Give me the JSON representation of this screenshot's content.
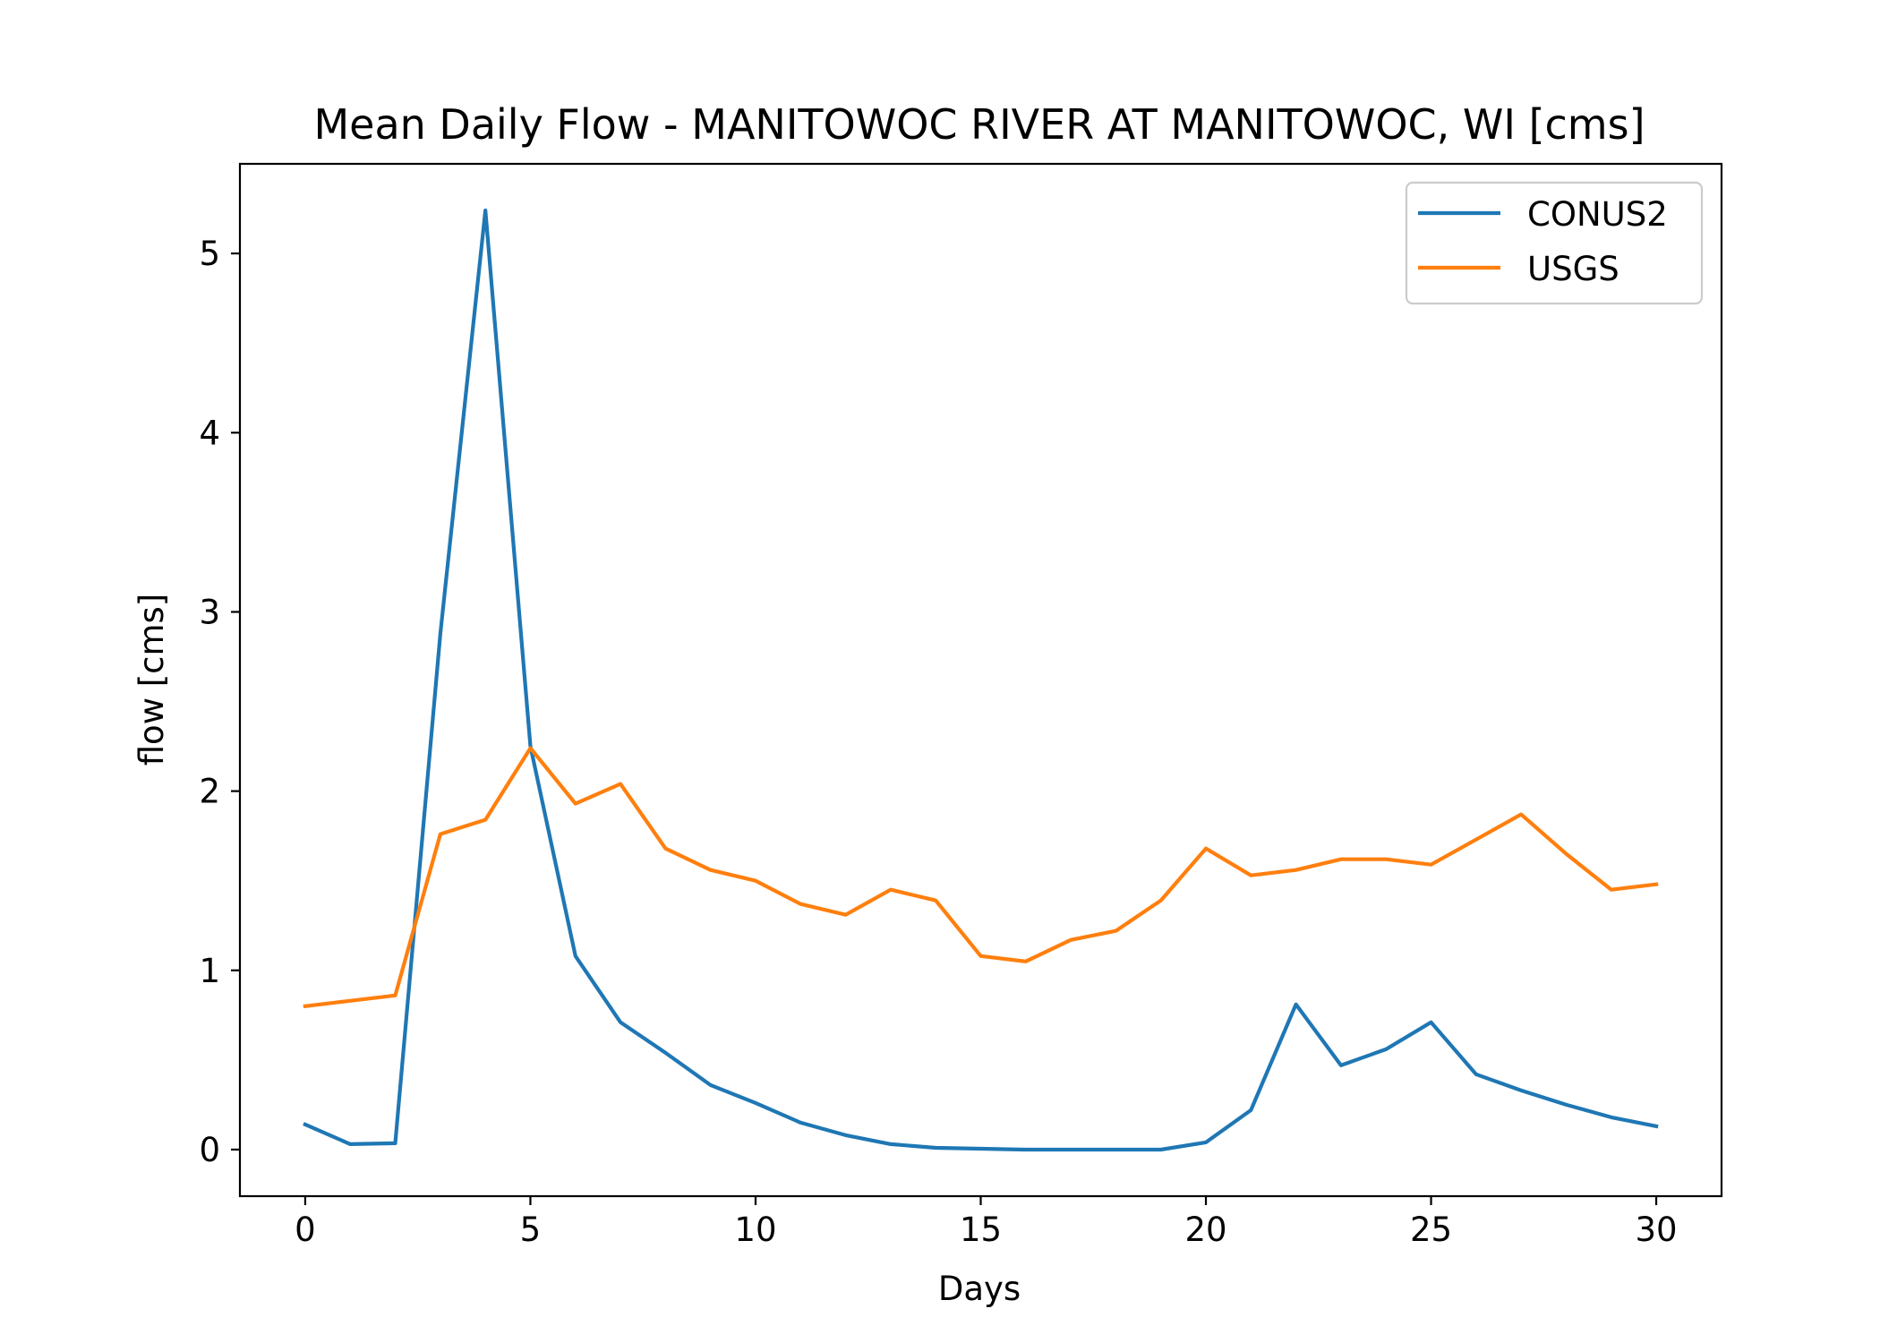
{
  "chart_data": {
    "type": "line",
    "title": "Mean Daily Flow - MANITOWOC RIVER AT MANITOWOC, WI [cms]",
    "xlabel": "Days",
    "ylabel": "flow [cms]",
    "xlim": [
      -1.45,
      31.45
    ],
    "ylim": [
      -0.26,
      5.5
    ],
    "xticks": [
      0,
      5,
      10,
      15,
      20,
      25,
      30
    ],
    "yticks": [
      0,
      1,
      2,
      3,
      4,
      5
    ],
    "grid": false,
    "legend_position": "top-right",
    "x": [
      0,
      1,
      2,
      3,
      4,
      5,
      6,
      7,
      8,
      9,
      10,
      11,
      12,
      13,
      14,
      15,
      16,
      17,
      18,
      19,
      20,
      21,
      22,
      23,
      24,
      25,
      26,
      27,
      28,
      29,
      30
    ],
    "series": [
      {
        "name": "CONUS2",
        "color": "#1f77b4",
        "values": [
          0.14,
          0.03,
          0.035,
          2.88,
          5.24,
          2.25,
          1.08,
          0.71,
          0.54,
          0.36,
          0.26,
          0.15,
          0.08,
          0.03,
          0.01,
          0.005,
          0.0,
          0.0,
          0.0,
          0.0,
          0.04,
          0.22,
          0.81,
          0.47,
          0.56,
          0.71,
          0.42,
          0.33,
          0.25,
          0.18,
          0.13
        ]
      },
      {
        "name": "USGS",
        "color": "#ff7f0e",
        "values": [
          0.8,
          0.83,
          0.86,
          1.76,
          1.84,
          2.24,
          1.93,
          2.04,
          1.68,
          1.56,
          1.5,
          1.37,
          1.31,
          1.45,
          1.39,
          1.08,
          1.05,
          1.17,
          1.22,
          1.39,
          1.68,
          1.53,
          1.56,
          1.62,
          1.62,
          1.59,
          1.73,
          1.87,
          1.65,
          1.45,
          1.48
        ]
      }
    ]
  }
}
